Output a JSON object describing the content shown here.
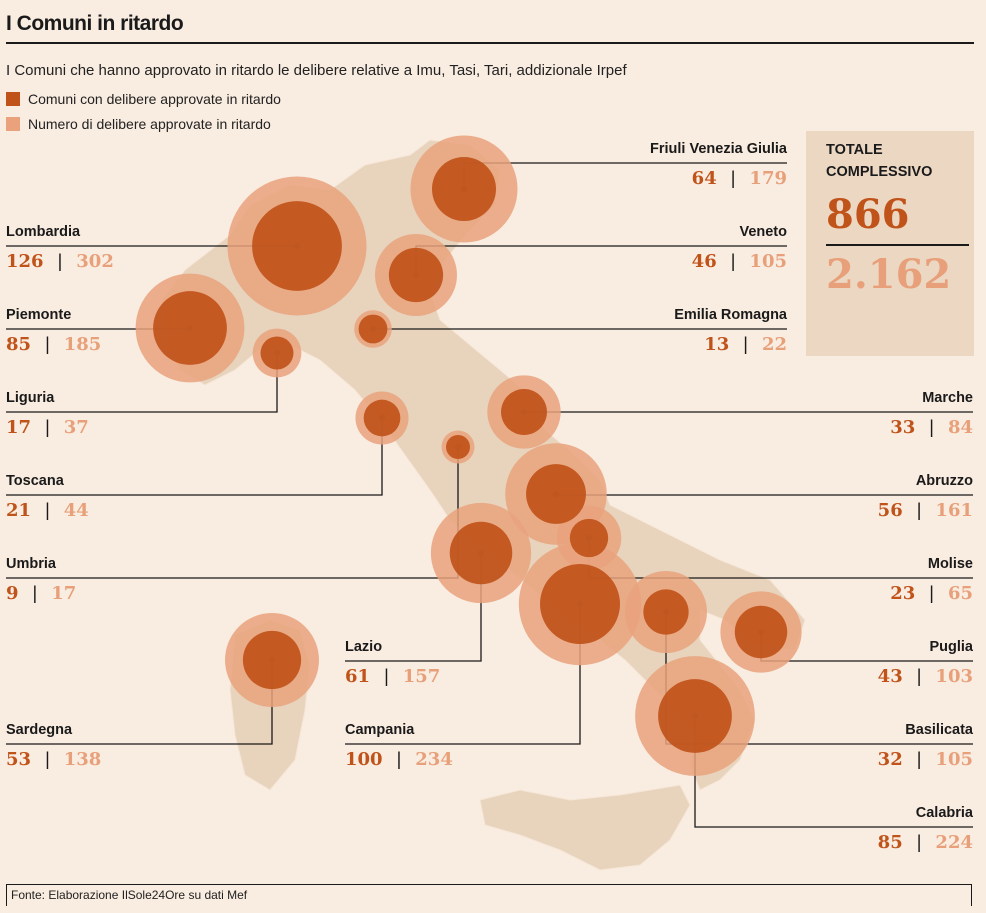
{
  "title": "I Comuni in ritardo",
  "subtitle": "I Comuni che hanno approvato in ritardo le delibere relative a Imu, Tasi, Tari, addizionale Irpef",
  "legend": [
    {
      "label": "Comuni con delibere approvate in ritardo",
      "color": "#c0531a"
    },
    {
      "label": "Numero di delibere approvate in ritardo",
      "color": "#e9a27c"
    }
  ],
  "totals": {
    "label_line1": "TOTALE",
    "label_line2": "COMPLESSIVO",
    "comuni": "866",
    "delibere": "2.162"
  },
  "source": "Fonte: Elaborazione IlSole24Ore su dati Mef",
  "colors": {
    "comuni": "#c0531a",
    "delibere": "#e9a27c",
    "map": "#e8d3bd"
  },
  "chart_data": {
    "type": "bubble-map",
    "series": [
      {
        "name": "Comuni con delibere approvate in ritardo"
      },
      {
        "name": "Numero di delibere approvate in ritardo"
      }
    ],
    "regions": [
      {
        "name": "Friuli Venezia Giulia",
        "comuni": 64,
        "delibere": 179
      },
      {
        "name": "Lombardia",
        "comuni": 126,
        "delibere": 302
      },
      {
        "name": "Veneto",
        "comuni": 46,
        "delibere": 105
      },
      {
        "name": "Piemonte",
        "comuni": 85,
        "delibere": 185
      },
      {
        "name": "Emilia Romagna",
        "comuni": 13,
        "delibere": 22
      },
      {
        "name": "Liguria",
        "comuni": 17,
        "delibere": 37
      },
      {
        "name": "Marche",
        "comuni": 33,
        "delibere": 84
      },
      {
        "name": "Toscana",
        "comuni": 21,
        "delibere": 44
      },
      {
        "name": "Abruzzo",
        "comuni": 56,
        "delibere": 161
      },
      {
        "name": "Umbria",
        "comuni": 9,
        "delibere": 17
      },
      {
        "name": "Molise",
        "comuni": 23,
        "delibere": 65
      },
      {
        "name": "Lazio",
        "comuni": 61,
        "delibere": 157
      },
      {
        "name": "Puglia",
        "comuni": 43,
        "delibere": 103
      },
      {
        "name": "Sardegna",
        "comuni": 53,
        "delibere": 138
      },
      {
        "name": "Campania",
        "comuni": 100,
        "delibere": 234
      },
      {
        "name": "Basilicata",
        "comuni": 32,
        "delibere": 105
      },
      {
        "name": "Calabria",
        "comuni": 85,
        "delibere": 224
      }
    ]
  }
}
